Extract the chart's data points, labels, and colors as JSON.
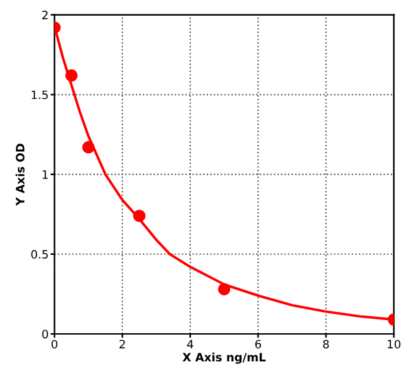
{
  "chart_data": {
    "type": "scatter",
    "xlabel": "X Axis ng/mL",
    "ylabel": "Y Axis OD",
    "xlim": [
      0,
      10
    ],
    "ylim": [
      0,
      2
    ],
    "xticks": [
      0,
      2,
      4,
      6,
      8,
      10
    ],
    "yticks": [
      0,
      0.5,
      1,
      1.5,
      2
    ],
    "grid": true,
    "marker": "circle",
    "series": [
      {
        "color": "#ff0000",
        "x": [
          0,
          0.5,
          1,
          2.5,
          5,
          10
        ],
        "values": [
          1.92,
          1.62,
          1.17,
          0.74,
          0.28,
          0.09
        ]
      },
      {
        "type": "line",
        "color": "#ff0000",
        "marker": "none",
        "x": [
          0,
          0.25,
          0.5,
          0.75,
          1,
          1.5,
          2,
          2.5,
          3,
          3.4,
          4,
          5,
          6,
          7,
          8,
          9,
          10
        ],
        "values": [
          1.93,
          1.73,
          1.56,
          1.39,
          1.24,
          1.0,
          0.84,
          0.72,
          0.59,
          0.5,
          0.42,
          0.31,
          0.24,
          0.18,
          0.14,
          0.11,
          0.09
        ]
      }
    ]
  }
}
